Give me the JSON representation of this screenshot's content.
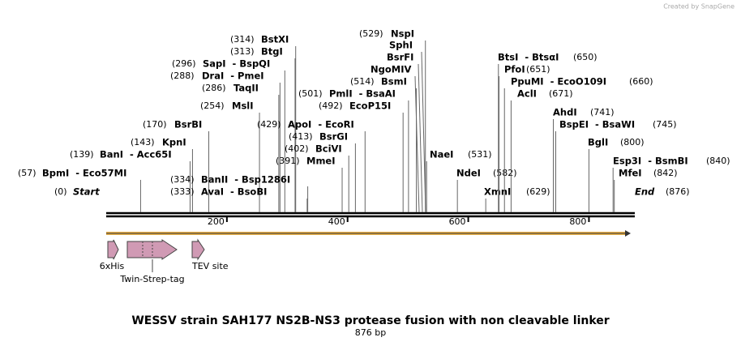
{
  "credit": "Created by SnapGene",
  "title": "WESSV strain SAH177 NS2B-NS3 protease fusion with non cleavable linker",
  "subtitle": "876 bp",
  "ruler": {
    "ticks": [
      200,
      400,
      600,
      800
    ]
  },
  "enzymes": [
    {
      "site": {
        "value": 0,
        "label": "(0)"
      },
      "name": "Start"
    },
    {
      "site": {
        "value": 57,
        "label": "(57)"
      },
      "name": "BpmI  - Eco57MI"
    },
    {
      "site": {
        "value": 139,
        "label": "(139)"
      },
      "name": "BanI  - Acc65I"
    },
    {
      "site": {
        "value": 143,
        "label": "(143)"
      },
      "name": "KpnI"
    },
    {
      "site": {
        "value": 170,
        "label": "(170)"
      },
      "name": "BsrBI"
    },
    {
      "site": {
        "value": 254,
        "label": "(254)"
      },
      "name": "MslI"
    },
    {
      "site": {
        "value": 286,
        "label": "(286)"
      },
      "name": "TaqII"
    },
    {
      "site": {
        "value": 288,
        "label": "(288)"
      },
      "name": "DraI  - PmeI"
    },
    {
      "site": {
        "value": 296,
        "label": "(296)"
      },
      "name": "SapI  - BspQI"
    },
    {
      "site": {
        "value": 313,
        "label": "(313)"
      },
      "name": "BtgI"
    },
    {
      "site": {
        "value": 314,
        "label": "(314)"
      },
      "name": "BstXI"
    },
    {
      "site": {
        "value": 334,
        "label": "(334)"
      },
      "name": "BanII  - Bsp1286I"
    },
    {
      "site": {
        "value": 333,
        "label": "(333)"
      },
      "name": "AvaI  - BsoBI"
    },
    {
      "site": {
        "value": 391,
        "label": "(391)"
      },
      "name": "MmeI"
    },
    {
      "site": {
        "value": 402,
        "label": "(402)"
      },
      "name": "BciVI"
    },
    {
      "site": {
        "value": 413,
        "label": "(413)"
      },
      "name": "BsrGI"
    },
    {
      "site": {
        "value": 429,
        "label": "(429)"
      },
      "name": "ApoI  - EcoRI"
    },
    {
      "site": {
        "value": 492,
        "label": "(492)"
      },
      "name": "EcoP15I"
    },
    {
      "site": {
        "value": 501,
        "label": "(501)"
      },
      "name": "PmlI  - BsaAI"
    },
    {
      "site": {
        "value": 514,
        "label": "(514)"
      },
      "name": "BsmI"
    },
    {
      "name": "NgoMIV"
    },
    {
      "name": "BsrFI"
    },
    {
      "name": "SphI"
    },
    {
      "site": {
        "value": 529,
        "label": "(529)"
      },
      "name": "NspI"
    },
    {
      "site": {
        "value": 531,
        "label": "(531)"
      },
      "name": "NaeI"
    },
    {
      "site": {
        "value": 582,
        "label": "(582)"
      },
      "name": "NdeI"
    },
    {
      "site": {
        "value": 629,
        "label": "(629)"
      },
      "name": "XmnI"
    },
    {
      "site": {
        "value": 650,
        "label": "(650)"
      },
      "name": "BtsI  - BtsαI"
    },
    {
      "site": {
        "value": 651,
        "label": "(651)"
      },
      "name": "PfoI"
    },
    {
      "site": {
        "value": 660,
        "label": "(660)"
      },
      "name": "PpuMI  - EcoO109I"
    },
    {
      "site": {
        "value": 671,
        "label": "(671)"
      },
      "name": "AclI"
    },
    {
      "site": {
        "value": 741,
        "label": "(741)"
      },
      "name": "AhdI"
    },
    {
      "site": {
        "value": 745,
        "label": "(745)"
      },
      "name": "BspEI  - BsaWI"
    },
    {
      "site": {
        "value": 800,
        "label": "(800)"
      },
      "name": "BglI"
    },
    {
      "site": {
        "value": 840,
        "label": "(840)"
      },
      "name": "Esp3I  - BsmBI"
    },
    {
      "site": {
        "value": 842,
        "label": "(842)"
      },
      "name": "MfeI"
    },
    {
      "site": {
        "value": 876,
        "label": "(876)"
      },
      "name": "End"
    }
  ],
  "features": [
    {
      "name": "6xHis"
    },
    {
      "name": "Twin-Strep-tag"
    },
    {
      "name": "TEV site"
    }
  ]
}
